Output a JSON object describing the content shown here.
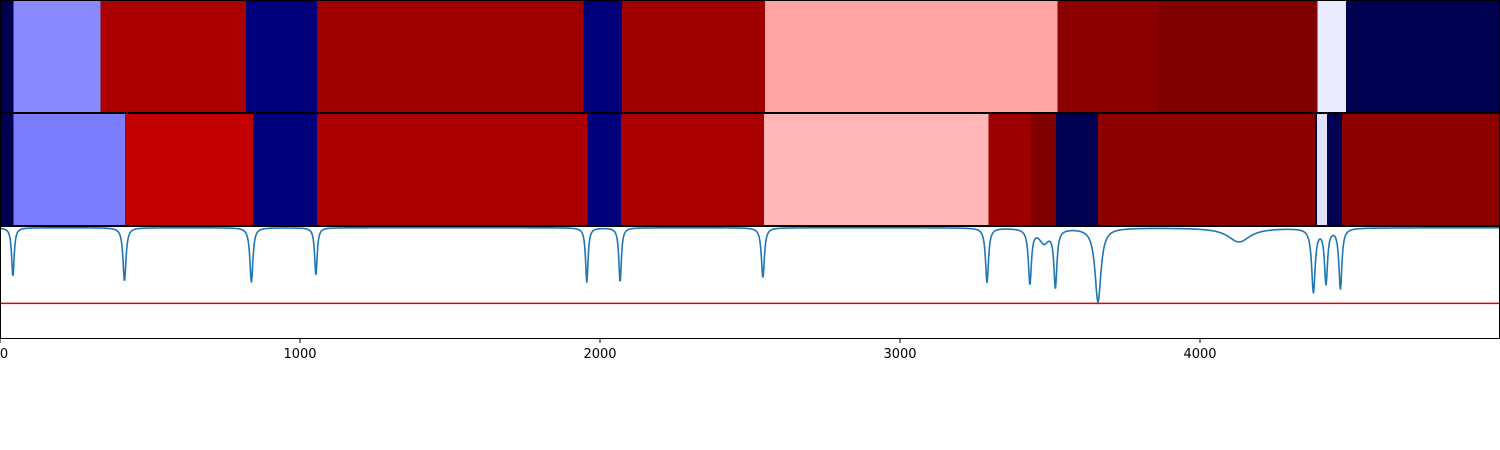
{
  "chart_data": [
    {
      "type": "heatmap",
      "xlim": [
        0,
        5000
      ],
      "segments": [
        {
          "start": 0,
          "end": 45,
          "color": "#000050"
        },
        {
          "start": 45,
          "end": 335,
          "color": "#8888ff"
        },
        {
          "start": 335,
          "end": 820,
          "color": "#aa0000"
        },
        {
          "start": 820,
          "end": 1057,
          "color": "#00007a"
        },
        {
          "start": 1057,
          "end": 1945,
          "color": "#a00000"
        },
        {
          "start": 1945,
          "end": 2073,
          "color": "#00007a"
        },
        {
          "start": 2073,
          "end": 2550,
          "color": "#a00000"
        },
        {
          "start": 2550,
          "end": 3525,
          "color": "#ffa4a4"
        },
        {
          "start": 3525,
          "end": 3858,
          "color": "#8c0000"
        },
        {
          "start": 3858,
          "end": 4392,
          "color": "#800000"
        },
        {
          "start": 4392,
          "end": 4487,
          "color": "#eaeaff"
        },
        {
          "start": 4487,
          "end": 5000,
          "color": "#000050"
        }
      ]
    },
    {
      "type": "heatmap",
      "xlim": [
        0,
        5000
      ],
      "segments": [
        {
          "start": 0,
          "end": 45,
          "color": "#000050"
        },
        {
          "start": 45,
          "end": 417,
          "color": "#7c7cff"
        },
        {
          "start": 417,
          "end": 843,
          "color": "#c20000"
        },
        {
          "start": 843,
          "end": 1057,
          "color": "#00007a"
        },
        {
          "start": 1057,
          "end": 1958,
          "color": "#aa0000"
        },
        {
          "start": 1958,
          "end": 2070,
          "color": "#00007a"
        },
        {
          "start": 2070,
          "end": 2547,
          "color": "#aa0000"
        },
        {
          "start": 2547,
          "end": 3295,
          "color": "#ffb6b6"
        },
        {
          "start": 3295,
          "end": 3437,
          "color": "#9c0000"
        },
        {
          "start": 3437,
          "end": 3520,
          "color": "#800000"
        },
        {
          "start": 3520,
          "end": 3660,
          "color": "#000050"
        },
        {
          "start": 3660,
          "end": 4383,
          "color": "#8c0000"
        },
        {
          "start": 4383,
          "end": 4390,
          "color": "#000050"
        },
        {
          "start": 4390,
          "end": 4423,
          "color": "#e0e0ff"
        },
        {
          "start": 4423,
          "end": 4473,
          "color": "#000050"
        },
        {
          "start": 4473,
          "end": 5000,
          "color": "#8c0000"
        }
      ]
    },
    {
      "type": "line",
      "xlim": [
        0,
        5000
      ],
      "ylim": [
        0,
        1
      ],
      "x_ticks": [
        0,
        1000,
        2000,
        3000,
        4000
      ],
      "x_tick_labels": [
        "0",
        "1000",
        "2000",
        "3000",
        "4000"
      ],
      "series": [
        {
          "color": "#1f77b4",
          "baseline": 0.985,
          "dips": [
            {
              "x": 43,
              "value": 0.55,
              "width": 5
            },
            {
              "x": 415,
              "value": 0.51,
              "width": 6
            },
            {
              "x": 838,
              "value": 0.5,
              "width": 6
            },
            {
              "x": 1053,
              "value": 0.56,
              "width": 5
            },
            {
              "x": 1956,
              "value": 0.5,
              "width": 5
            },
            {
              "x": 2067,
              "value": 0.5,
              "width": 5
            },
            {
              "x": 2543,
              "value": 0.54,
              "width": 6
            },
            {
              "x": 3290,
              "value": 0.5,
              "width": 6
            },
            {
              "x": 3433,
              "value": 0.5,
              "width": 6
            },
            {
              "x": 3480,
              "value": 0.86,
              "width": 20
            },
            {
              "x": 3518,
              "value": 0.48,
              "width": 6
            },
            {
              "x": 3660,
              "value": 0.33,
              "width": 12
            },
            {
              "x": 4130,
              "value": 0.86,
              "width": 45
            },
            {
              "x": 4378,
              "value": 0.42,
              "width": 7
            },
            {
              "x": 4420,
              "value": 0.5,
              "width": 6
            },
            {
              "x": 4468,
              "value": 0.45,
              "width": 6
            }
          ]
        }
      ],
      "threshold": {
        "value": 0.315,
        "color": "#e00000"
      }
    }
  ]
}
